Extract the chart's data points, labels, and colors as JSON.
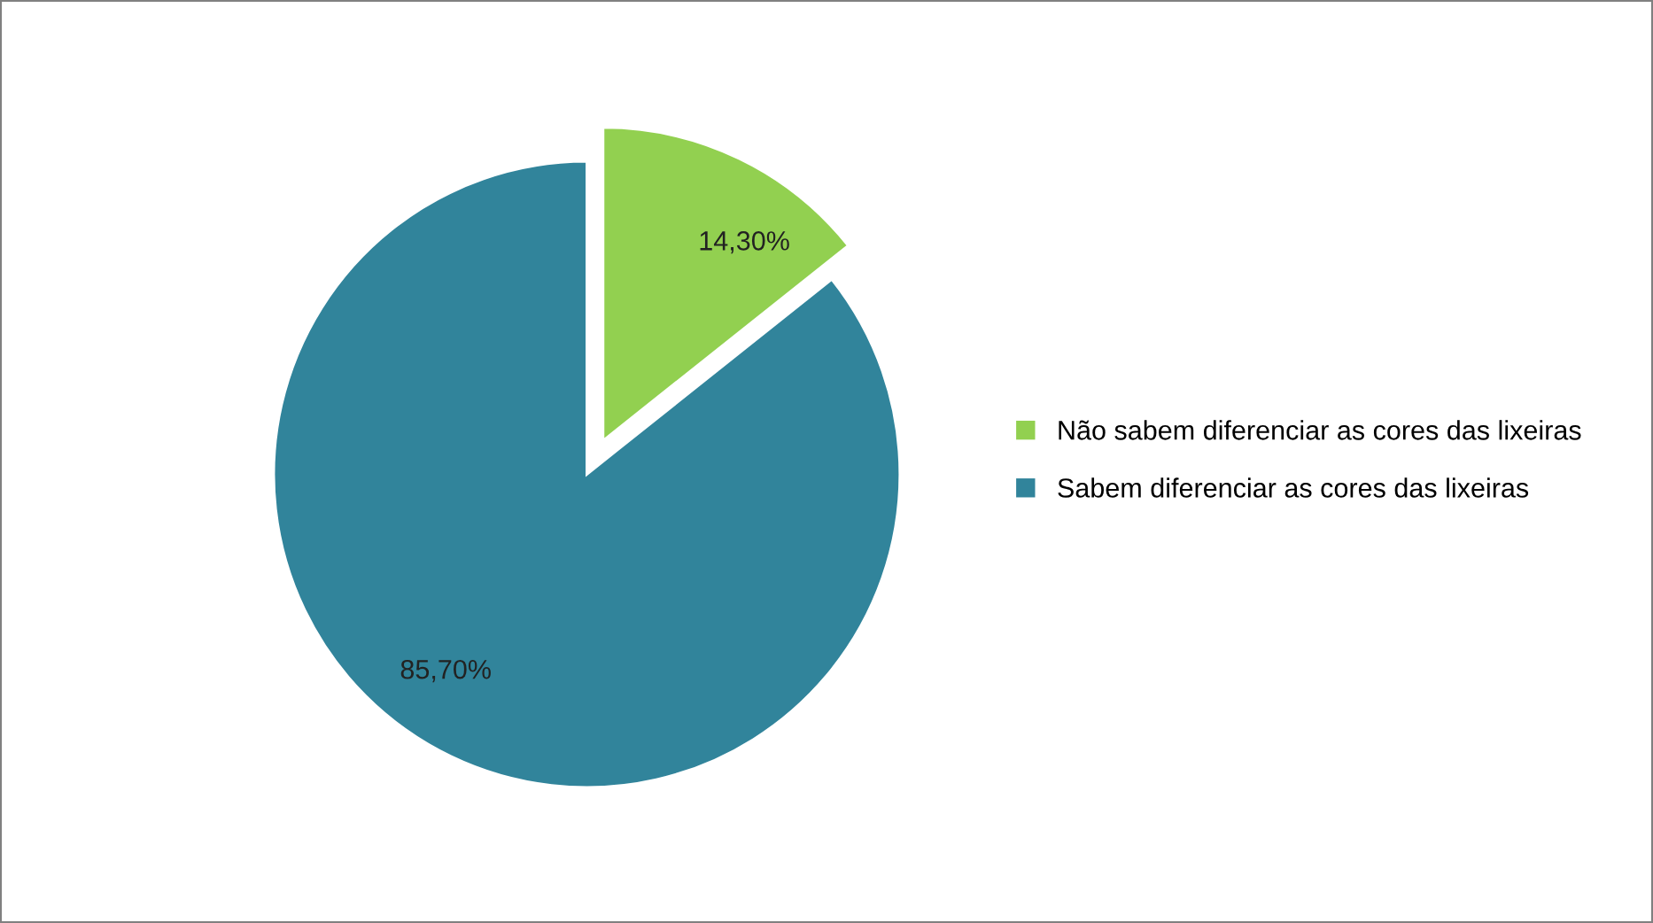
{
  "chart_data": {
    "type": "pie",
    "categories": [
      "Não sabem diferenciar as cores das lixeiras",
      "Sabem diferenciar as cores das lixeiras"
    ],
    "values": [
      14.3,
      85.7
    ],
    "colors": [
      "#92d050",
      "#31849b"
    ],
    "value_labels": [
      "14,30%",
      "85,70%"
    ],
    "legend": "right"
  }
}
